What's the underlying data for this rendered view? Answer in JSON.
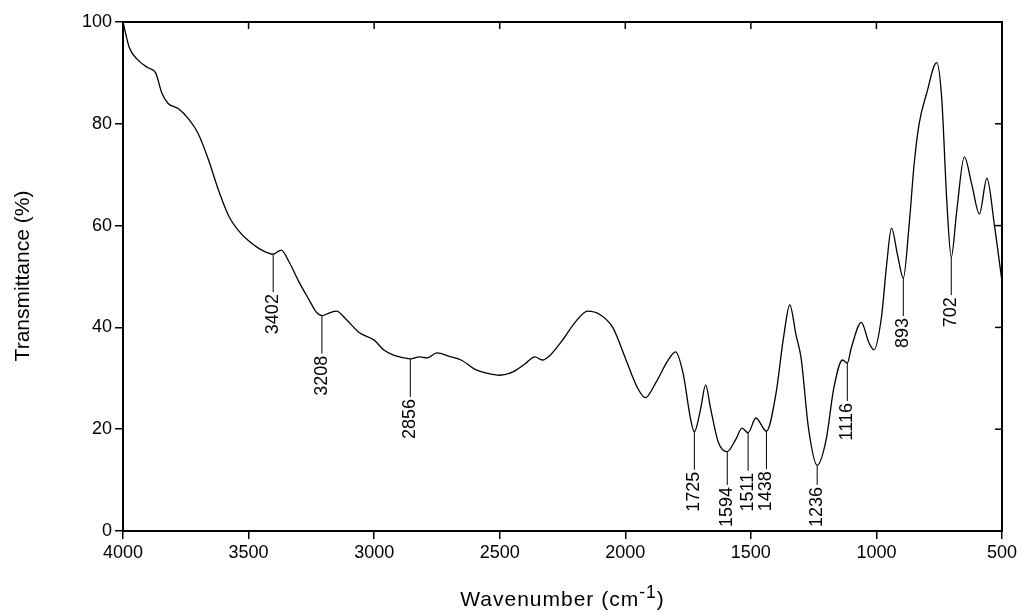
{
  "chart_data": {
    "type": "line",
    "xlabel": "Wavenumber (cm$^{-1}$)",
    "ylabel": "Transmittance (%)",
    "x": [
      4000,
      3975,
      3940,
      3900,
      3870,
      3845,
      3820,
      3780,
      3740,
      3700,
      3660,
      3620,
      3580,
      3540,
      3500,
      3440,
      3402,
      3370,
      3340,
      3300,
      3260,
      3230,
      3208,
      3180,
      3150,
      3110,
      3060,
      3000,
      2960,
      2920,
      2880,
      2856,
      2820,
      2790,
      2750,
      2700,
      2650,
      2600,
      2550,
      2500,
      2450,
      2400,
      2360,
      2330,
      2300,
      2250,
      2200,
      2150,
      2100,
      2050,
      2000,
      1950,
      1920,
      1880,
      1830,
      1800,
      1770,
      1740,
      1725,
      1700,
      1680,
      1660,
      1630,
      1594,
      1560,
      1535,
      1511,
      1480,
      1438,
      1400,
      1370,
      1345,
      1320,
      1300,
      1270,
      1236,
      1200,
      1170,
      1135,
      1116,
      1100,
      1060,
      1030,
      1010,
      980,
      960,
      940,
      915,
      893,
      870,
      850,
      830,
      800,
      760,
      740,
      720,
      702,
      680,
      650,
      620,
      590,
      560,
      530,
      500
    ],
    "series": [
      {
        "color": "#000000",
        "values": [
          100,
          95,
          92.5,
          91,
          90,
          86,
          84,
          83,
          81,
          78,
          73,
          67,
          62,
          59,
          57,
          55,
          54.4,
          55.2,
          53,
          49,
          45.5,
          43,
          42.3,
          42.8,
          43.2,
          41.5,
          39,
          37.5,
          35.5,
          34.5,
          34,
          33.8,
          34.2,
          34,
          35,
          34.3,
          33.5,
          31.8,
          31,
          30.6,
          31.2,
          32.8,
          34.2,
          33.6,
          34.5,
          37.5,
          41,
          43.2,
          42.5,
          40,
          34,
          28,
          26.2,
          29,
          33.5,
          35.2,
          31,
          22,
          19.5,
          24,
          28.7,
          24,
          17.5,
          15.6,
          18,
          20.2,
          19.3,
          22.2,
          19.6,
          27,
          38,
          44.4,
          38.5,
          34,
          20,
          12.9,
          18,
          28,
          33.6,
          33,
          36,
          41,
          37,
          35.6,
          42,
          52,
          59.5,
          54,
          49.7,
          60,
          72,
          80,
          86,
          92,
          85,
          65,
          53.8,
          63,
          73.5,
          68,
          62.3,
          69.3,
          60,
          49
        ]
      }
    ],
    "xlim": [
      4000,
      500
    ],
    "xticks": [
      4000,
      3500,
      3000,
      2500,
      2000,
      1500,
      1000,
      500
    ],
    "ylim": [
      0,
      100
    ],
    "yticks": [
      0,
      20,
      40,
      60,
      80,
      100
    ],
    "annotations": [
      {
        "text": "3402",
        "x": 3402,
        "y": 54.4
      },
      {
        "text": "3208",
        "x": 3208,
        "y": 42.3
      },
      {
        "text": "2856",
        "x": 2856,
        "y": 33.8
      },
      {
        "text": "1725",
        "x": 1725,
        "y": 19.5
      },
      {
        "text": "1594",
        "x": 1594,
        "y": 15.6
      },
      {
        "text": "1511",
        "x": 1511,
        "y": 19.3
      },
      {
        "text": "1438",
        "x": 1438,
        "y": 19.6
      },
      {
        "text": "1236",
        "x": 1236,
        "y": 12.9
      },
      {
        "text": "1116",
        "x": 1116,
        "y": 33
      },
      {
        "text": "893",
        "x": 893,
        "y": 49.7
      },
      {
        "text": "702",
        "x": 702,
        "y": 53.8
      }
    ],
    "grid": false,
    "legend": false,
    "marker": "none",
    "line_style": "solid"
  }
}
